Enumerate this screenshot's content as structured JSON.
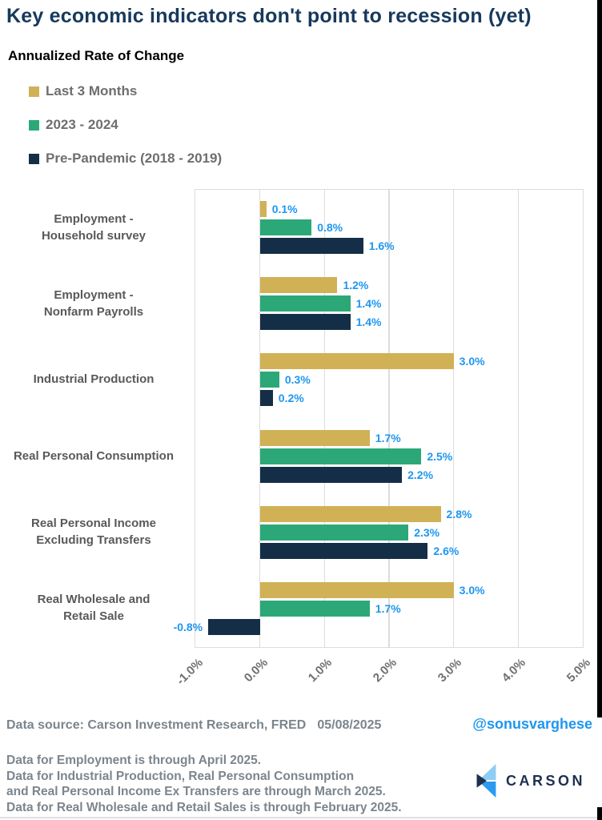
{
  "page": {
    "title": "Key economic indicators don't point to recession (yet)",
    "subtitle": "Annualized Rate of Change"
  },
  "legend": {
    "items": [
      {
        "label": "Last 3 Months",
        "color": "#d1b156"
      },
      {
        "label": "2023 - 2024",
        "color": "#2ca878"
      },
      {
        "label": "Pre-Pandemic (2018 - 2019)",
        "color": "#142e47"
      }
    ]
  },
  "chart_data": {
    "type": "bar",
    "orientation": "horizontal",
    "title": "Key economic indicators don't point to recession (yet)",
    "xlabel": "",
    "ylabel": "",
    "grid": true,
    "legend_position": "top-left",
    "categories": [
      "Employment -\nHousehold survey",
      "Employment -\nNonfarm Payrolls",
      "Industrial Production",
      "Real Personal Consumption",
      "Real Personal Income\nExcluding Transfers",
      "Real Wholesale and\nRetail Sale"
    ],
    "series": [
      {
        "name": "Last 3 Months",
        "color": "#d1b156",
        "values": [
          0.1,
          1.2,
          3.0,
          1.7,
          2.8,
          3.0
        ],
        "labels": [
          "0.1%",
          "1.2%",
          "3.0%",
          "1.7%",
          "2.8%",
          "3.0%"
        ]
      },
      {
        "name": "2023 - 2024",
        "color": "#2ca878",
        "values": [
          0.8,
          1.4,
          0.3,
          2.5,
          2.3,
          1.7
        ],
        "labels": [
          "0.8%",
          "1.4%",
          "0.3%",
          "2.5%",
          "2.3%",
          "1.7%"
        ]
      },
      {
        "name": "Pre-Pandemic (2018 - 2019)",
        "color": "#142e47",
        "values": [
          1.6,
          1.4,
          0.2,
          2.2,
          2.6,
          -0.8
        ],
        "labels": [
          "1.6%",
          "1.4%",
          "0.2%",
          "2.2%",
          "2.6%",
          "-0.8%"
        ]
      }
    ],
    "xlim": [
      -1,
      5
    ],
    "xticks": [
      "-1.0%",
      "0.0%",
      "1.0%",
      "2.0%",
      "3.0%",
      "4.0%",
      "5.0%"
    ],
    "value_label_color": "#1e96f0"
  },
  "footer": {
    "source_label": "Data source: Carson Investment Research, FRED",
    "source_date": "05/08/2025",
    "handle": "@sonusvarghese",
    "notes": [
      "Data for Employment is through April 2025.",
      "Data for Industrial Production, Real Personal Consumption",
      "and Real Personal Income Ex Transfers are through March 2025.",
      "Data for Real Wholesale and Retail Sales is through February 2025."
    ],
    "logo_text": "CARSON",
    "logo_colors": {
      "light": "#8ecdf4",
      "mid": "#2b9af0",
      "dark": "#1d3050"
    }
  }
}
